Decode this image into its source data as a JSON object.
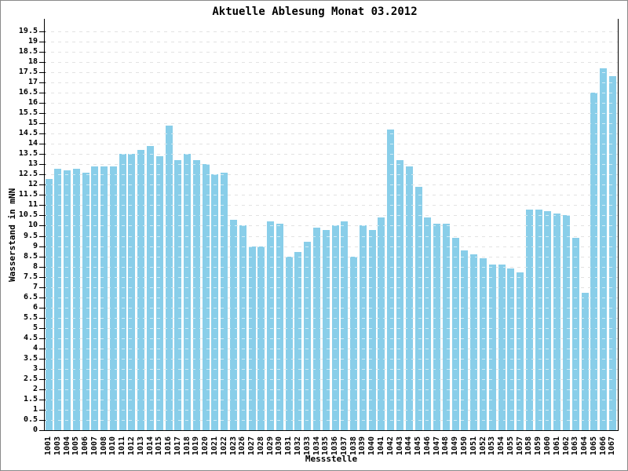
{
  "window": {
    "background": "#ffffff",
    "border_color": "#8a8a8a"
  },
  "chart_data": {
    "type": "bar",
    "title": "Aktuelle Ablesung Monat 03.2012",
    "xlabel": "Messstelle",
    "ylabel": "Wasserstand in mNN",
    "ylim": [
      0,
      19.5
    ],
    "ytick_step": 0.5,
    "grid": "horizontal dashed gray lines at every 0.5, visible through semi-transparent bars",
    "legend": "none",
    "bar_color": "#89CEE9",
    "gridline_color": "#b4b4b4",
    "axis_color": "#000000",
    "categories": [
      "1001",
      "1003",
      "1004",
      "1005",
      "1006",
      "1007",
      "1008",
      "1010",
      "1011",
      "1012",
      "1013",
      "1014",
      "1015",
      "1016",
      "1017",
      "1018",
      "1019",
      "1020",
      "1021",
      "1022",
      "1023",
      "1026",
      "1027",
      "1028",
      "1029",
      "1030",
      "1031",
      "1032",
      "1033",
      "1034",
      "1035",
      "1036",
      "1037",
      "1038",
      "1039",
      "1040",
      "1041",
      "1042",
      "1043",
      "1044",
      "1045",
      "1046",
      "1047",
      "1048",
      "1049",
      "1050",
      "1051",
      "1052",
      "1053",
      "1054",
      "1055",
      "1057",
      "1058",
      "1059",
      "1060",
      "1061",
      "1062",
      "1063",
      "1064",
      "1065",
      "1066",
      "1067"
    ],
    "values": [
      12.3,
      12.8,
      12.7,
      12.8,
      12.6,
      12.9,
      12.9,
      12.9,
      13.5,
      13.5,
      13.7,
      13.9,
      13.4,
      14.9,
      13.2,
      13.5,
      13.2,
      13.0,
      12.5,
      12.6,
      10.3,
      10.0,
      9.0,
      9.0,
      10.2,
      10.1,
      8.5,
      8.7,
      9.2,
      9.9,
      9.8,
      10.0,
      10.2,
      8.5,
      10.0,
      9.8,
      10.4,
      14.7,
      13.2,
      12.9,
      11.9,
      10.4,
      10.1,
      10.1,
      9.4,
      8.8,
      8.6,
      8.4,
      8.1,
      8.1,
      7.9,
      7.7,
      10.8,
      10.8,
      10.7,
      10.6,
      10.5,
      9.4,
      6.7,
      16.5,
      17.7,
      17.3
    ]
  }
}
